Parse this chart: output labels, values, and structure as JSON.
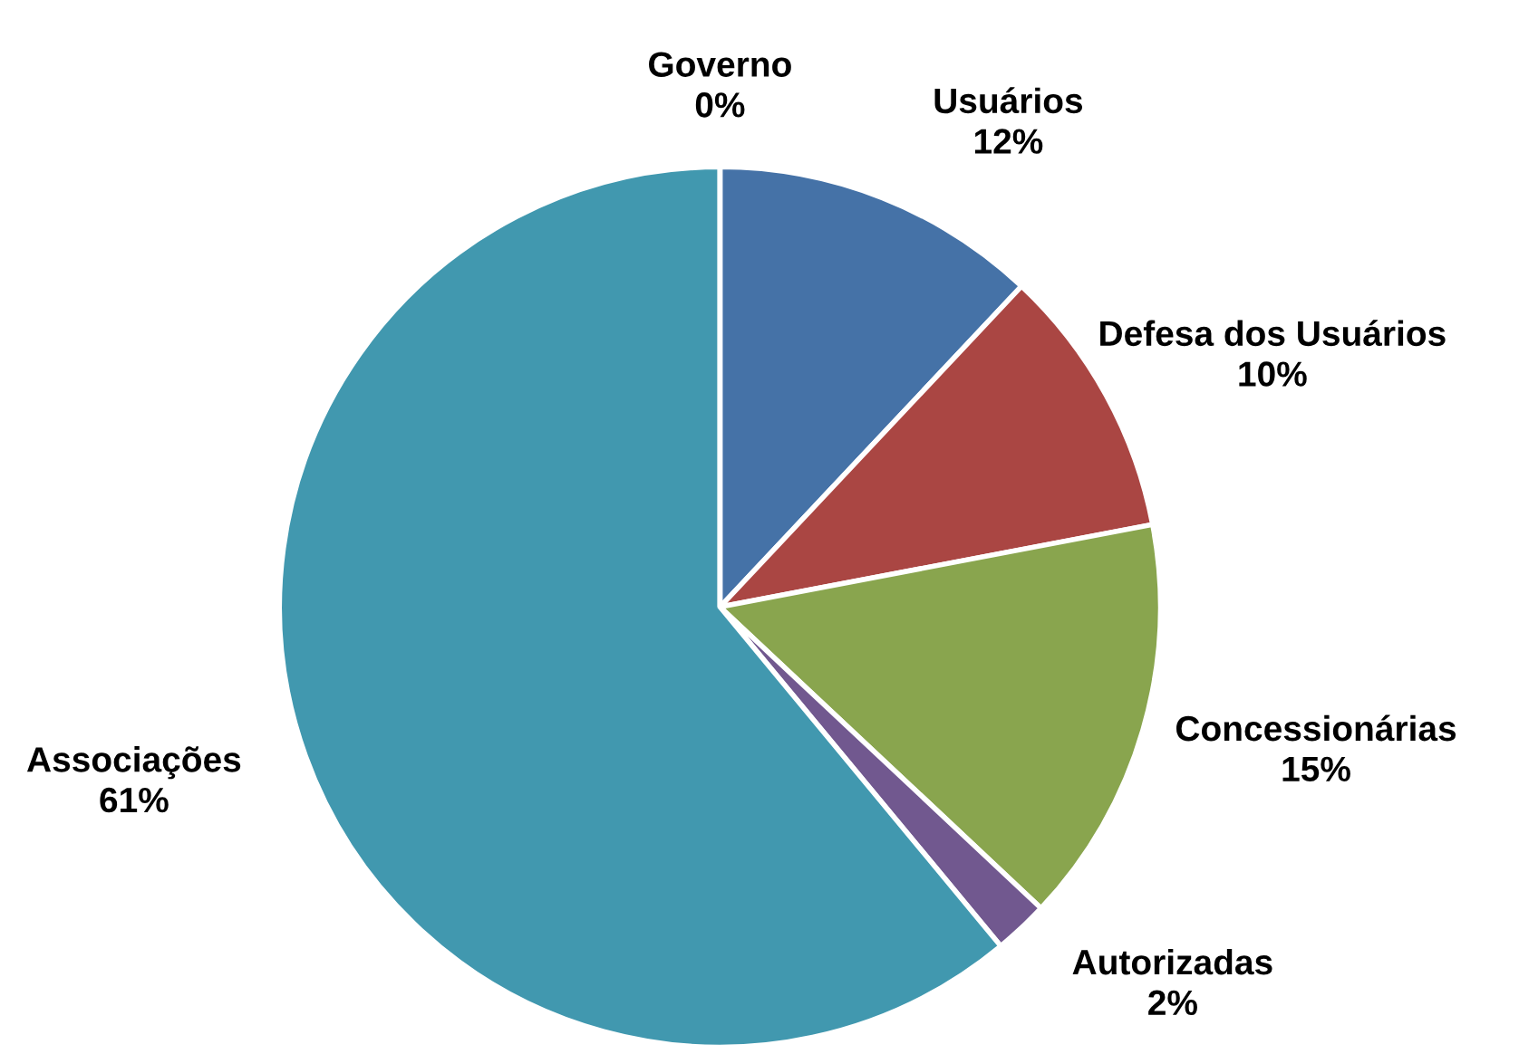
{
  "chart_data": {
    "type": "pie",
    "categories": [
      "Usuários",
      "Defesa dos Usuários",
      "Concessionárias",
      "Autorizadas",
      "Associações",
      "Governo"
    ],
    "values": [
      12,
      10,
      15,
      2,
      61,
      0
    ],
    "colors": [
      "#4572a7",
      "#aa4643",
      "#89a54e",
      "#71588f",
      "#4198af",
      "#db843d"
    ],
    "value_labels": [
      "12%",
      "10%",
      "15%",
      "2%",
      "61%",
      "0%"
    ]
  }
}
